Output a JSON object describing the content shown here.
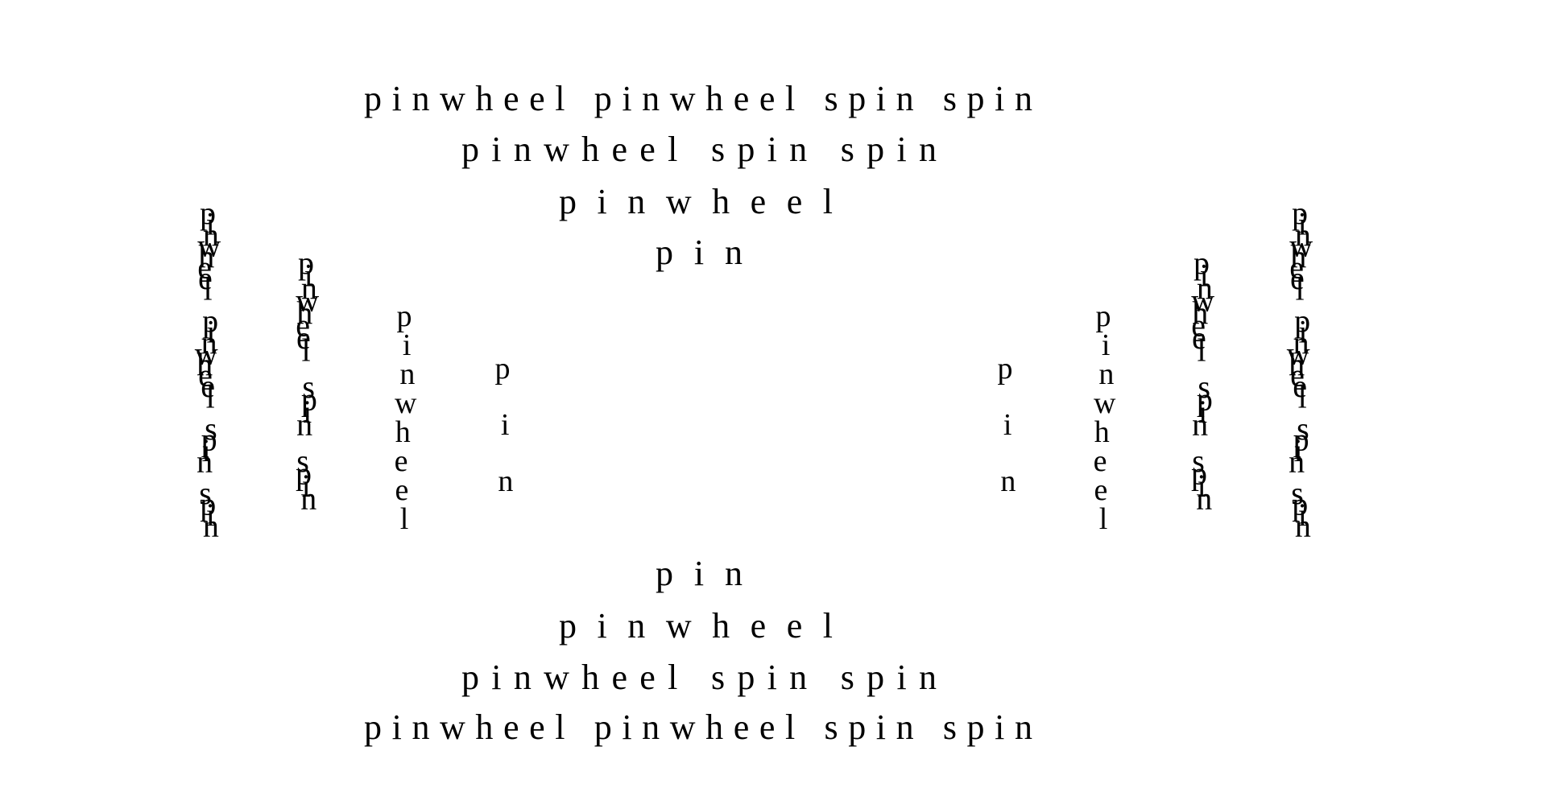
{
  "words": {
    "pinwheel": "pinwheel",
    "spin": "spin",
    "pin": "pin"
  },
  "top_block": [
    "pinwheel pinwheel spin spin",
    "pinwheel spin spin",
    "pinwheel",
    "pin"
  ],
  "bottom_block": [
    "pin",
    "pinwheel",
    "pinwheel spin spin",
    "pinwheel pinwheel spin spin"
  ],
  "left_columns": [
    "pinwheel pinwheel spin spin",
    "pinwheel spin spin",
    "pinwheel",
    "pin"
  ],
  "right_columns": [
    "pin",
    "pinwheel",
    "pinwheel spin spin",
    "pinwheel pinwheel spin spin"
  ],
  "colors": {
    "background": "#ffffff",
    "text": "#000000"
  }
}
